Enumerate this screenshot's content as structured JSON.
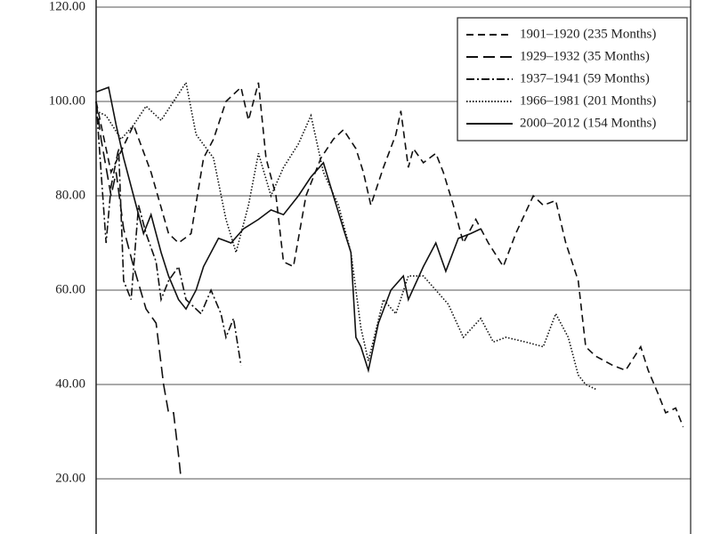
{
  "chart_data": {
    "type": "line",
    "xlim": [
      0,
      238
    ],
    "ylim": [
      0,
      120
    ],
    "yticks": [
      {
        "value": 20,
        "label": "20.00"
      },
      {
        "value": 40,
        "label": "40.00"
      },
      {
        "value": 60,
        "label": "60.00"
      },
      {
        "value": 80,
        "label": "80.00"
      },
      {
        "value": 100,
        "label": "100.00"
      },
      {
        "value": 120,
        "label": "120.00"
      }
    ],
    "grid": true,
    "legend": "upper right",
    "series": [
      {
        "name": "1901–1920 (235 Months)",
        "color": "#111",
        "dash": "8,5",
        "x": [
          0,
          6,
          15,
          22,
          29,
          33,
          38,
          43,
          47,
          52,
          58,
          61,
          65,
          68,
          72,
          75,
          79,
          84,
          90,
          95,
          99,
          104,
          107,
          110,
          115,
          120,
          122,
          125,
          127,
          131,
          136,
          139,
          143,
          147,
          152,
          157,
          163,
          168,
          175,
          179,
          184,
          188,
          193,
          196,
          200,
          207,
          212,
          218,
          221,
          225,
          228,
          232,
          235
        ],
        "values": [
          100,
          85,
          95,
          85,
          72,
          70,
          72,
          88,
          92,
          100,
          103,
          96,
          104,
          88,
          80,
          66,
          65,
          80,
          88,
          92,
          94,
          90,
          85,
          78,
          86,
          93,
          98,
          86,
          90,
          87,
          89,
          85,
          78,
          70,
          75,
          70,
          65,
          72,
          80,
          78,
          79,
          70,
          62,
          48,
          46,
          44,
          43,
          48,
          43,
          38,
          34,
          35,
          31
        ]
      },
      {
        "name": "1929–1932 (35 Months)",
        "color": "#111",
        "dash": "13,6",
        "x": [
          0,
          2,
          6,
          8,
          11,
          15,
          20,
          24,
          27,
          29,
          31,
          33,
          34
        ],
        "values": [
          100,
          92,
          80,
          85,
          73,
          65,
          56,
          53,
          40,
          34,
          34,
          25,
          20
        ]
      },
      {
        "name": "1937–1941 (59 Months)",
        "color": "#111",
        "dash": "9,3,2,3",
        "x": [
          0,
          4,
          6,
          9,
          11,
          14,
          17,
          20,
          24,
          26,
          29,
          33,
          36,
          42,
          46,
          50,
          52,
          55,
          58
        ],
        "values": [
          100,
          70,
          82,
          90,
          62,
          58,
          78,
          72,
          66,
          58,
          62,
          65,
          58,
          55,
          60,
          55,
          50,
          54,
          44
        ]
      },
      {
        "name": "1966–1981 (201 Months)",
        "color": "#111",
        "dash": "1.5,2",
        "x": [
          0,
          4,
          10,
          15,
          20,
          26,
          31,
          36,
          40,
          47,
          52,
          56,
          61,
          65,
          70,
          75,
          81,
          86,
          91,
          97,
          102,
          106,
          109,
          115,
          120,
          125,
          131,
          136,
          141,
          147,
          154,
          159,
          164,
          172,
          179,
          184,
          189,
          193,
          196,
          200
        ],
        "values": [
          98,
          97,
          92,
          95,
          99,
          96,
          100,
          104,
          93,
          88,
          75,
          68,
          78,
          89,
          80,
          86,
          91,
          97,
          85,
          78,
          68,
          52,
          45,
          58,
          55,
          63,
          63,
          60,
          57,
          50,
          54,
          49,
          50,
          49,
          48,
          55,
          50,
          42,
          40,
          39
        ]
      },
      {
        "name": "2000–2012 (154 Months)",
        "color": "#111",
        "dash": "",
        "x": [
          0,
          5,
          8,
          11,
          15,
          19,
          22,
          26,
          29,
          33,
          36,
          40,
          43,
          49,
          54,
          59,
          65,
          70,
          75,
          81,
          86,
          91,
          95,
          99,
          102,
          104,
          106,
          109,
          113,
          118,
          123,
          125,
          131,
          136,
          140,
          145,
          150,
          154
        ],
        "values": [
          102,
          103,
          95,
          88,
          80,
          72,
          76,
          68,
          63,
          58,
          56,
          60,
          65,
          71,
          70,
          73,
          75,
          77,
          76,
          80,
          84,
          87,
          80,
          73,
          68,
          50,
          48,
          43,
          53,
          60,
          63,
          58,
          65,
          70,
          64,
          71,
          72,
          73
        ]
      }
    ]
  }
}
